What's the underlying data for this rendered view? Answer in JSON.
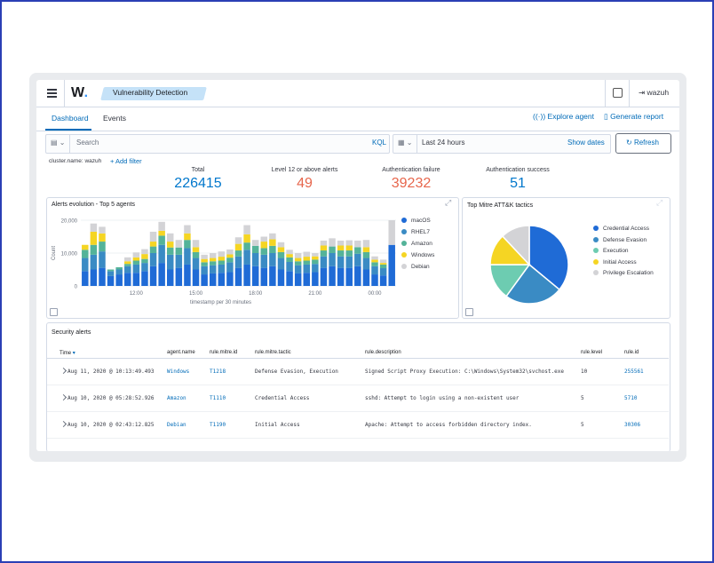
{
  "header": {
    "logo_text": "W",
    "logo_dot": ".",
    "breadcrumb": "Vulnerability Detection",
    "user": "wazuh"
  },
  "tabs": [
    {
      "label": "Dashboard",
      "active": true
    },
    {
      "label": "Events",
      "active": false
    }
  ],
  "actions": {
    "explore_agent": "Explore agent",
    "generate_report": "Generate report"
  },
  "search": {
    "placeholder": "Search",
    "language": "KQL"
  },
  "date_picker": {
    "value": "Last 24 hours",
    "show_dates": "Show dates"
  },
  "refresh_label": "Refresh",
  "filters": {
    "pill": "cluster.name: wazuh",
    "add_filter": "+ Add filter"
  },
  "kpis": [
    {
      "label": "Total",
      "value": "226415",
      "color": "#0077cc"
    },
    {
      "label": "Level 12 or above alerts",
      "value": "49",
      "color": "#e7664c"
    },
    {
      "label": "Authentication failure",
      "value": "39232",
      "color": "#e7664c"
    },
    {
      "label": "Authentication success",
      "value": "51",
      "color": "#0077cc"
    }
  ],
  "alerts_chart": {
    "title": "Alerts evolution - Top 5 agents",
    "ylabel": "Count",
    "xlabel": "timestamp per 30 minutes",
    "y_ticks": [
      "20,000",
      "10,000",
      "0"
    ],
    "x_ticks": [
      "12:00",
      "15:00",
      "18:00",
      "21:00",
      "00:00"
    ],
    "legend": [
      {
        "name": "macOS",
        "color": "#1f6bd6"
      },
      {
        "name": "RHEL7",
        "color": "#3a8bc4"
      },
      {
        "name": "Amazon",
        "color": "#54b399"
      },
      {
        "name": "Windows",
        "color": "#f5d523"
      },
      {
        "name": "Debian",
        "color": "#d3d3d6"
      }
    ]
  },
  "chart_data": [
    {
      "type": "bar",
      "title": "Alerts evolution - Top 5 agents",
      "xlabel": "timestamp per 30 minutes",
      "ylabel": "Count",
      "ylim": [
        0,
        20000
      ],
      "stacked": true,
      "series": [
        {
          "name": "macOS",
          "values": [
            4500,
            5000,
            5500,
            3000,
            3500,
            4000,
            4000,
            4500,
            6000,
            7000,
            5000,
            5500,
            6500,
            5000,
            3500,
            3800,
            4000,
            4200,
            5500,
            6500,
            6000,
            5500,
            6000,
            5000,
            4500,
            3800,
            4000,
            4200,
            5500,
            6000,
            5500,
            5500,
            6000,
            5000,
            3500,
            3200,
            12500
          ]
        },
        {
          "name": "RHEL7",
          "values": [
            4000,
            4500,
            5000,
            1500,
            1500,
            2000,
            2500,
            2500,
            4000,
            5500,
            4500,
            4000,
            5000,
            3500,
            2500,
            2500,
            2500,
            3000,
            3500,
            4500,
            4000,
            4000,
            4000,
            3500,
            2800,
            2500,
            2500,
            2500,
            3500,
            4000,
            3500,
            3500,
            3800,
            3500,
            2500,
            2200,
            0
          ]
        },
        {
          "name": "Amazon",
          "values": [
            2500,
            3000,
            3000,
            500,
            700,
            700,
            1200,
            1200,
            2000,
            2800,
            2200,
            2200,
            2500,
            1800,
            1200,
            1200,
            1200,
            1400,
            1800,
            2200,
            2200,
            2000,
            2200,
            1800,
            1400,
            1200,
            1200,
            1300,
            1800,
            2000,
            1800,
            1800,
            2000,
            1800,
            1200,
            1100,
            0
          ]
        },
        {
          "name": "Windows",
          "values": [
            1500,
            4000,
            2500,
            0,
            0,
            800,
            1000,
            1500,
            1500,
            1500,
            1800,
            0,
            2000,
            1500,
            1000,
            1000,
            1200,
            1000,
            2000,
            2500,
            0,
            2000,
            2000,
            1500,
            1000,
            1000,
            1200,
            1000,
            1500,
            0,
            1500,
            1500,
            0,
            1500,
            800,
            500,
            0
          ]
        },
        {
          "name": "Debian",
          "values": [
            0,
            2500,
            2000,
            0,
            0,
            1200,
            1500,
            1500,
            3000,
            2700,
            2500,
            2300,
            2500,
            2200,
            1300,
            1500,
            1600,
            1500,
            2000,
            2800,
            1800,
            1500,
            1800,
            1500,
            1300,
            1500,
            1500,
            1000,
            1500,
            2500,
            1500,
            1600,
            2000,
            2200,
            1000,
            1000,
            7500
          ]
        }
      ]
    },
    {
      "type": "pie",
      "title": "Top Mitre ATT&K tactics",
      "categories": [
        "Credential Access",
        "Defense Evasion",
        "Execution",
        "Initial Access",
        "Privilege Escalation"
      ],
      "values": [
        36,
        24,
        15,
        13,
        12
      ]
    }
  ],
  "mitre_chart": {
    "title": "Top Mitre ATT&K tactics",
    "legend": [
      {
        "name": "Credential Access",
        "color": "#1f6bd6"
      },
      {
        "name": "Defense Evasion",
        "color": "#3a8bc4"
      },
      {
        "name": "Execution",
        "color": "#6dccb1"
      },
      {
        "name": "Initial Access",
        "color": "#f5d523"
      },
      {
        "name": "Privilege Escalation",
        "color": "#d3d3d6"
      }
    ]
  },
  "security_alerts": {
    "title": "Security alerts",
    "columns": [
      "Time",
      "agent.name",
      "rule.mitre.id",
      "rule.mitre.tactic",
      "rule.description",
      "rule.level",
      "rule.id"
    ],
    "rows": [
      {
        "time": "Aug 11, 2020 @ 10:13:49.493",
        "agent": "Windows",
        "mitre_id": "T1218",
        "tactic": "Defense Evasion, Execution",
        "description": "Signed Script Proxy Execution: C:\\Windows\\System32\\svchost.exe",
        "level": "10",
        "rule_id": "255561"
      },
      {
        "time": "Aug 10, 2020 @ 05:28:52.926",
        "agent": "Amazon",
        "mitre_id": "T1110",
        "tactic": "Credential Access",
        "description": "sshd: Attempt to login using a non-existent user",
        "level": "5",
        "rule_id": "5710"
      },
      {
        "time": "Aug 10, 2020 @ 02:43:12.825",
        "agent": "Debian",
        "mitre_id": "T1190",
        "tactic": "Initial Access",
        "description": "Apache: Attempt to access forbidden directory index.",
        "level": "5",
        "rule_id": "30306"
      }
    ]
  }
}
